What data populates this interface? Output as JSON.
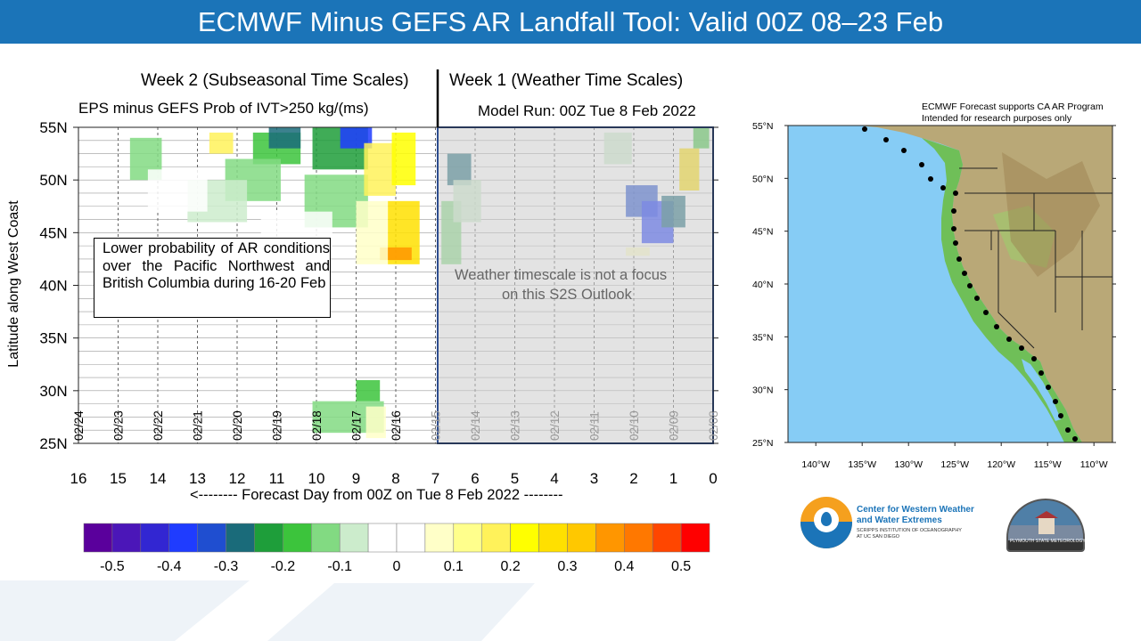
{
  "title": "ECMWF Minus GEFS AR Landfall Tool: Valid 00Z 08–23 Feb",
  "week2_label": "Week 2 (Subseasonal Time Scales)",
  "week1_label": "Week 1 (Weather Time Scales)",
  "main_chart": {
    "subtitle": "EPS minus GEFS Prob of IVT>250 kg/(ms)",
    "model_run": "Model Run: 00Z Tue 8 Feb 2022",
    "ylabel": "Latitude along West Coast",
    "xlabel": "<-------- Forecast Day from 00Z on Tue 8 Feb 2022 --------",
    "y_ticks": [
      "55N",
      "50N",
      "45N",
      "40N",
      "35N",
      "30N",
      "25N"
    ],
    "x_ticks": [
      "16",
      "15",
      "14",
      "13",
      "12",
      "11",
      "10",
      "9",
      "8",
      "7",
      "6",
      "5",
      "4",
      "3",
      "2",
      "1",
      "0"
    ],
    "date_labels": [
      "02/24",
      "02/23",
      "02/22",
      "02/21",
      "02/20",
      "02/19",
      "02/18",
      "02/17",
      "02/16",
      "02/15",
      "02/14",
      "02/13",
      "02/12",
      "02/11",
      "02/10",
      "02/09",
      "02/08"
    ],
    "annotation": "Lower probability of AR conditions over the Pacific Northwest and British Columbia during 16-20 Feb",
    "shaded_note_line1": "Weather timescale is not a focus",
    "shaded_note_line2": "on this S2S Outlook"
  },
  "colorbar": {
    "colors": [
      "#5a009c",
      "#4b16b8",
      "#3226d2",
      "#1f3cff",
      "#1f4ed0",
      "#1a6b7a",
      "#1e9e3a",
      "#3cc43c",
      "#82da82",
      "#cceccc",
      "#ffffff",
      "#ffffff",
      "#ffffc8",
      "#ffff8c",
      "#fff25a",
      "#ffff00",
      "#ffe000",
      "#ffc800",
      "#ff9600",
      "#ff7800",
      "#ff4600",
      "#ff0000"
    ],
    "labels": [
      "-0.5",
      "-0.4",
      "-0.3",
      "-0.2",
      "-0.1",
      "0",
      "0.1",
      "0.2",
      "0.3",
      "0.4",
      "0.5"
    ]
  },
  "map": {
    "header_line1": "ECMWF Forecast supports CA AR Program",
    "header_line2": "Intended for research purposes only",
    "lat_labels": [
      "55°N",
      "50°N",
      "45°N",
      "40°N",
      "35°N",
      "30°N",
      "25°N"
    ],
    "lon_labels": [
      "140°W",
      "135°W",
      "130°W",
      "125°W",
      "120°W",
      "115°W",
      "110°W"
    ]
  },
  "logos": {
    "cw3e_line1": "Center for Western Weather",
    "cw3e_line2": "and Water Extremes",
    "cw3e_line3": "SCRIPPS INSTITUTION OF OCEANOGRAPHY",
    "cw3e_line4": "AT UC SAN DIEGO",
    "psu_text": "PLYMOUTH STATE METEOROLOGY"
  },
  "chart_data": {
    "type": "heatmap",
    "title": "EPS minus GEFS Prob of IVT>250 kg/(ms)",
    "xlabel": "<-------- Forecast Day from 00Z on Tue 8 Feb 2022 --------",
    "ylabel": "Latitude along West Coast",
    "xlim": [
      16,
      0
    ],
    "ylim": [
      25,
      55
    ],
    "colorbar_range": [
      -0.5,
      0.5
    ],
    "cells": [
      {
        "day": 11.0,
        "lat": 53,
        "w": 1.2,
        "h": 3,
        "v": -0.2
      },
      {
        "day": 11.6,
        "lat": 50,
        "w": 1.4,
        "h": 4,
        "v": -0.15
      },
      {
        "day": 12.5,
        "lat": 48,
        "w": 1.5,
        "h": 4,
        "v": -0.1
      },
      {
        "day": 14.3,
        "lat": 52,
        "w": 0.8,
        "h": 4,
        "v": -0.15
      },
      {
        "day": 13.5,
        "lat": 49,
        "w": 1.5,
        "h": 4,
        "v": -0.05
      },
      {
        "day": 10.8,
        "lat": 54,
        "w": 0.8,
        "h": 2,
        "v": -0.3
      },
      {
        "day": 9.4,
        "lat": 53,
        "w": 1.4,
        "h": 4,
        "v": -0.25
      },
      {
        "day": 9.0,
        "lat": 54,
        "w": 0.8,
        "h": 2,
        "v": -0.4
      },
      {
        "day": 9.5,
        "lat": 48,
        "w": 1.6,
        "h": 5,
        "v": -0.12
      },
      {
        "day": 10.5,
        "lat": 45,
        "w": 1.8,
        "h": 4,
        "v": -0.05
      },
      {
        "day": 12.4,
        "lat": 53.5,
        "w": 0.6,
        "h": 2,
        "v": 0.15
      },
      {
        "day": 8.4,
        "lat": 51,
        "w": 0.8,
        "h": 5,
        "v": 0.18
      },
      {
        "day": 7.8,
        "lat": 52,
        "w": 0.6,
        "h": 5,
        "v": 0.22
      },
      {
        "day": 7.8,
        "lat": 45,
        "w": 0.8,
        "h": 6,
        "v": 0.25
      },
      {
        "day": 8.0,
        "lat": 43,
        "w": 0.8,
        "h": 1.2,
        "v": 0.35
      },
      {
        "day": 8.6,
        "lat": 45,
        "w": 0.8,
        "h": 6,
        "v": 0.1
      },
      {
        "day": 9.2,
        "lat": 27.5,
        "w": 1.8,
        "h": 3,
        "v": -0.12
      },
      {
        "day": 8.7,
        "lat": 30,
        "w": 0.6,
        "h": 2,
        "v": -0.18
      },
      {
        "day": 8.5,
        "lat": 27,
        "w": 0.5,
        "h": 3,
        "v": 0.1
      },
      {
        "day": 6.4,
        "lat": 51,
        "w": 0.6,
        "h": 3,
        "v": -0.3
      },
      {
        "day": 6.6,
        "lat": 45,
        "w": 0.5,
        "h": 6,
        "v": -0.12
      },
      {
        "day": 6.2,
        "lat": 48,
        "w": 0.7,
        "h": 4,
        "v": -0.08
      },
      {
        "day": 2.4,
        "lat": 53,
        "w": 0.7,
        "h": 3,
        "v": -0.1
      },
      {
        "day": 1.8,
        "lat": 48,
        "w": 0.8,
        "h": 3,
        "v": -0.35
      },
      {
        "day": 1.4,
        "lat": 46,
        "w": 0.8,
        "h": 4,
        "v": -0.4
      },
      {
        "day": 1.0,
        "lat": 47,
        "w": 0.6,
        "h": 3,
        "v": -0.3
      },
      {
        "day": 0.6,
        "lat": 51,
        "w": 0.5,
        "h": 4,
        "v": 0.25
      },
      {
        "day": 0.3,
        "lat": 54,
        "w": 0.4,
        "h": 2,
        "v": -0.2
      },
      {
        "day": 1.9,
        "lat": 43.2,
        "w": 0.6,
        "h": 0.8,
        "v": 0.1
      }
    ]
  }
}
